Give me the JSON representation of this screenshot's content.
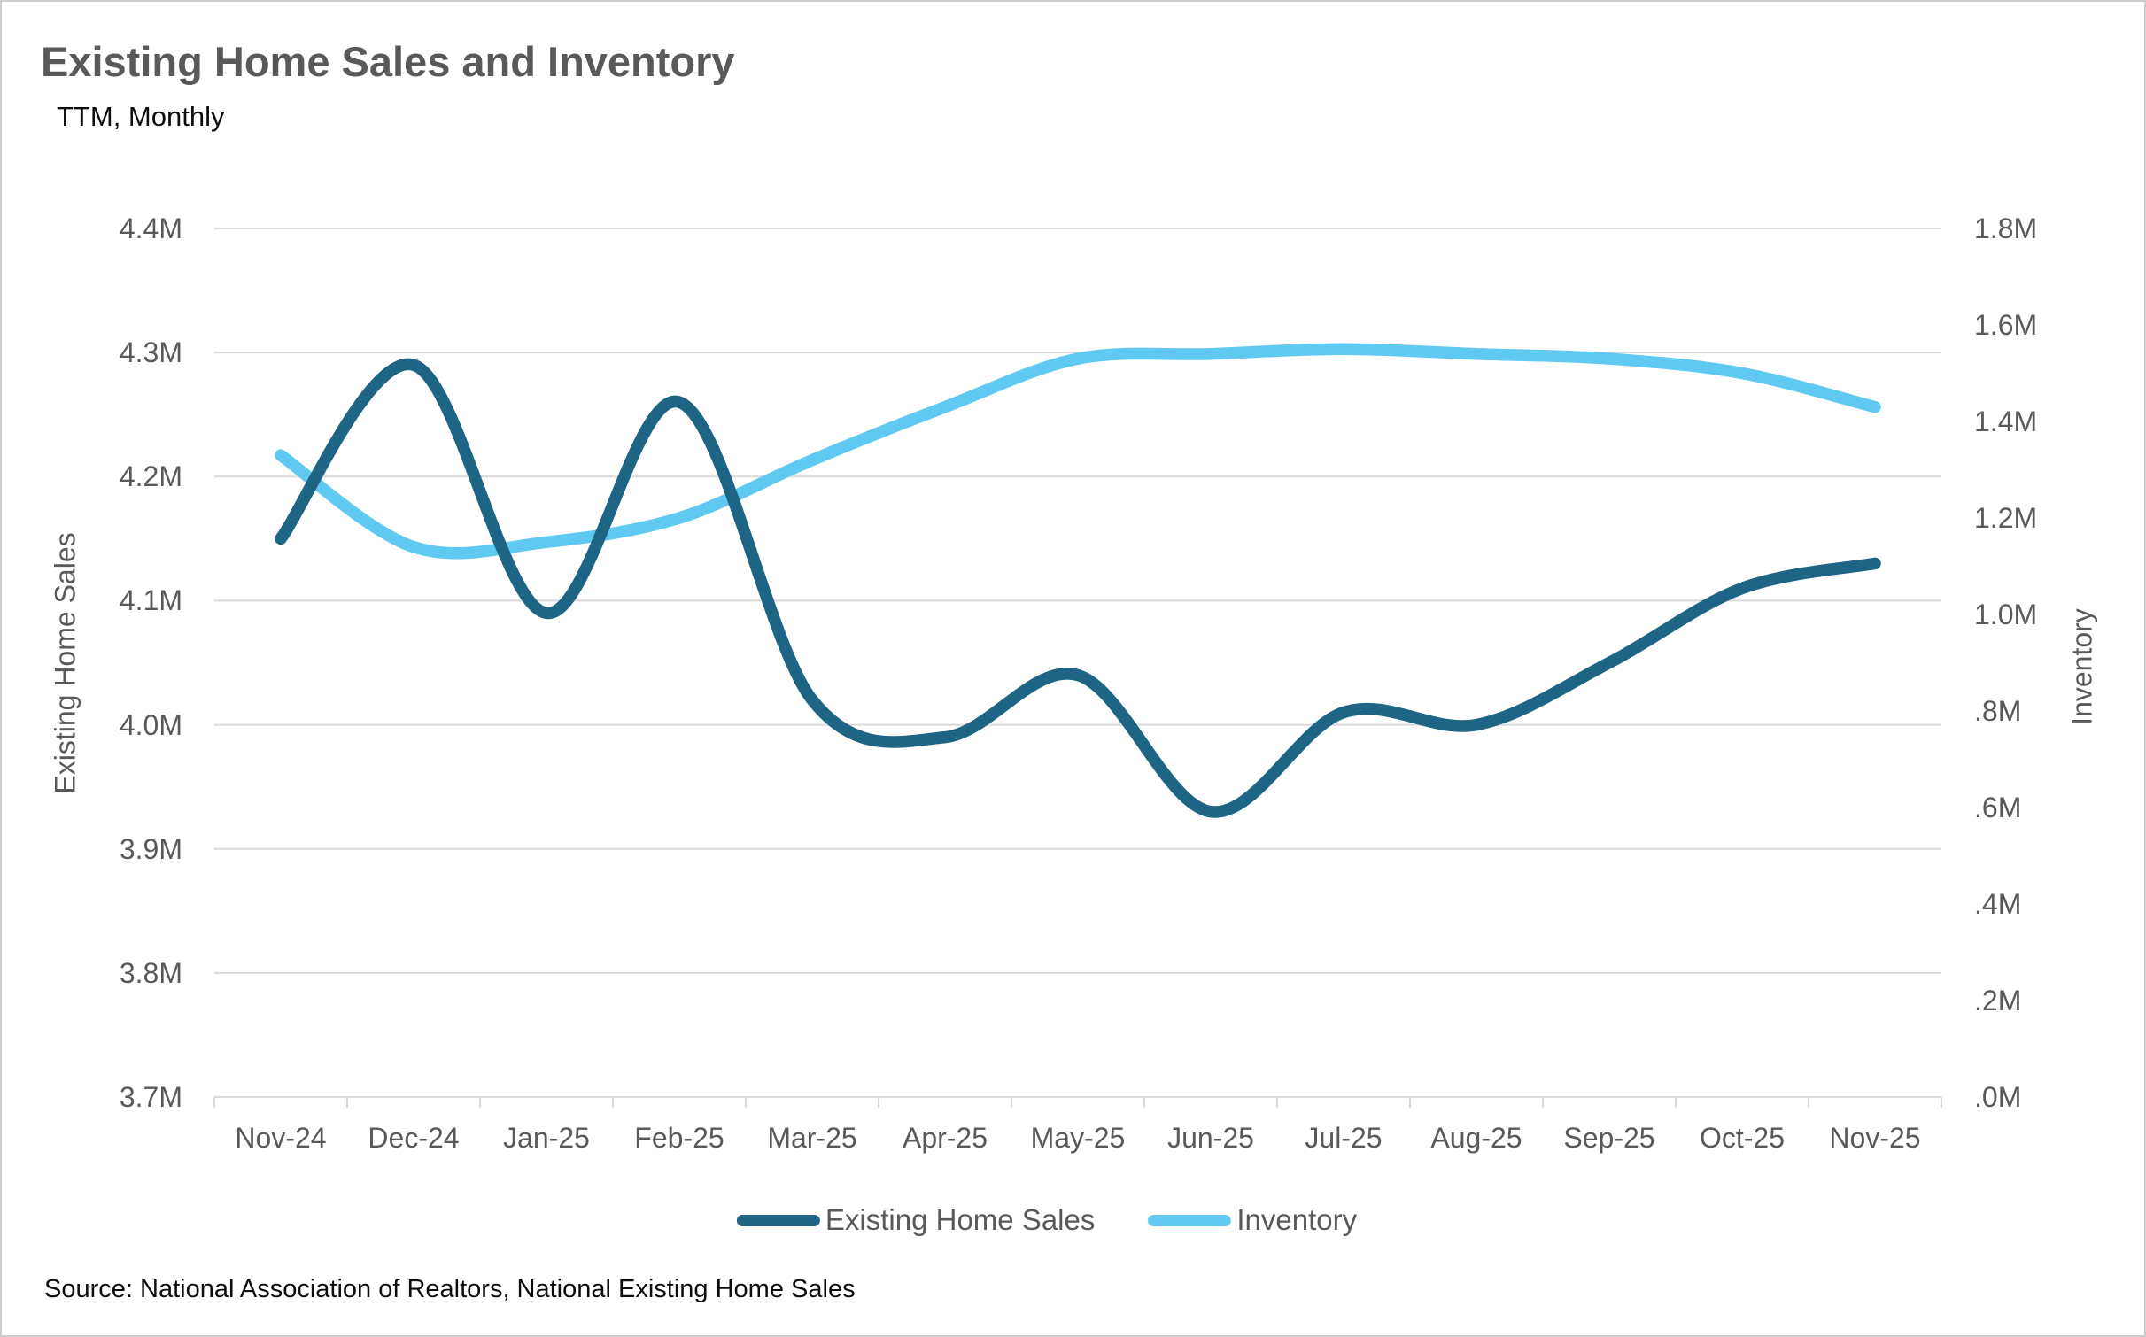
{
  "header": {
    "title": "Existing Home Sales and Inventory",
    "subtitle": "TTM, Monthly"
  },
  "source_note": "Source: National Association of Realtors, National Existing Home Sales",
  "colors": {
    "sales_line": "#1e6484",
    "inventory_line": "#5fc9f1",
    "gridline": "#d9d9d9",
    "axis_text": "#595959",
    "title_text": "#595959",
    "background": "#ffffff",
    "frame_border": "#cccccc"
  },
  "legend": {
    "items": [
      {
        "label": "Existing Home Sales",
        "color": "#1e6484"
      },
      {
        "label": "Inventory",
        "color": "#5fc9f1"
      }
    ]
  },
  "chart_data": {
    "type": "line",
    "title": "Existing Home Sales and Inventory",
    "subtitle": "TTM, Monthly",
    "categories": [
      "Nov-24",
      "Dec-24",
      "Jan-25",
      "Feb-25",
      "Mar-25",
      "Apr-25",
      "May-25",
      "Jun-25",
      "Jul-25",
      "Aug-25",
      "Sep-25",
      "Oct-25",
      "Nov-25"
    ],
    "series": [
      {
        "name": "Existing Home Sales",
        "axis": "left",
        "color": "#1e6484",
        "values": [
          4.15,
          4.29,
          4.09,
          4.26,
          4.02,
          3.99,
          4.04,
          3.93,
          4.01,
          4.0,
          4.05,
          4.11,
          4.13
        ]
      },
      {
        "name": "Inventory",
        "axis": "right",
        "color": "#5fc9f1",
        "values": [
          1.33,
          1.14,
          1.15,
          1.2,
          1.32,
          1.43,
          1.53,
          1.54,
          1.55,
          1.54,
          1.53,
          1.5,
          1.43
        ]
      }
    ],
    "left_axis": {
      "label": "Existing Home Sales",
      "min": 3.7,
      "max": 4.4,
      "tick_labels": [
        "4.4M",
        "4.3M",
        "4.2M",
        "4.1M",
        "4.0M",
        "3.9M",
        "3.8M",
        "3.7M"
      ]
    },
    "right_axis": {
      "label": "Inventory",
      "min": 0.0,
      "max": 1.8,
      "tick_labels": [
        "1.8M",
        "1.6M",
        "1.4M",
        "1.2M",
        "1.0M",
        ".8M",
        ".6M",
        ".4M",
        ".2M",
        ".0M"
      ]
    },
    "grid": true,
    "smooth_lines": true,
    "line_width": 13.5,
    "legend_position": "bottom"
  }
}
